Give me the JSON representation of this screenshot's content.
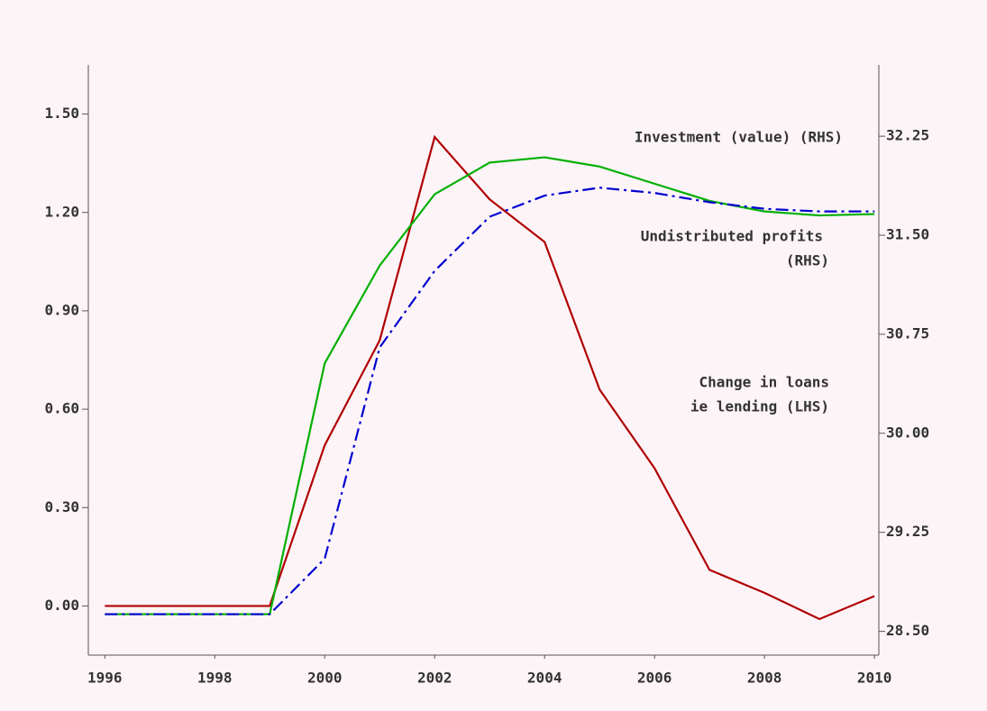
{
  "chart_data": {
    "type": "line",
    "x": [
      1996,
      1997,
      1998,
      1999,
      2000,
      2001,
      2002,
      2003,
      2004,
      2005,
      2006,
      2007,
      2008,
      2009,
      2010
    ],
    "series": [
      {
        "color": "#b00000",
        "axis": "y",
        "dash": false,
        "values": [
          0.0,
          0.0,
          0.0,
          0.0,
          0.49,
          0.81,
          1.43,
          1.24,
          1.11,
          0.66,
          0.42,
          0.11,
          0.04,
          -0.04,
          0.03
        ]
      },
      {
        "color": "#00b000",
        "axis": "y2",
        "dash": false,
        "values": [
          28.63,
          28.63,
          28.63,
          28.63,
          30.53,
          31.27,
          31.81,
          32.05,
          32.09,
          32.02,
          31.89,
          31.76,
          31.68,
          31.65,
          31.66
        ]
      },
      {
        "color": "#0000d0",
        "axis": "y2",
        "dash": true,
        "values": [
          28.63,
          28.63,
          28.63,
          28.63,
          29.05,
          30.65,
          31.23,
          31.64,
          31.8,
          31.86,
          31.82,
          31.75,
          31.7,
          31.68,
          31.68
        ]
      }
    ],
    "annotations": [
      "Investment (value) (RHS)",
      "Undistributed profits",
      "(RHS)",
      "Change in loans",
      "ie lending (LHS)"
    ],
    "xlim": [
      1995.7,
      2010.08
    ],
    "xticks": [
      1996,
      1998,
      2000,
      2002,
      2004,
      2006,
      2008,
      2010
    ],
    "ylim": [
      -0.15,
      1.65
    ],
    "yticks": [
      {
        "value": 0,
        "label": "0.00"
      },
      {
        "value": 0.3,
        "label": "0.30"
      },
      {
        "value": 0.6,
        "label": "0.60"
      },
      {
        "value": 0.9,
        "label": "0.90"
      },
      {
        "value": 1.2,
        "label": "1.20"
      },
      {
        "value": 1.5,
        "label": "1.50"
      }
    ],
    "y2lim": [
      28.32,
      32.79
    ],
    "y2ticks": [
      {
        "value": 28.5,
        "label": "28.50"
      },
      29.25,
      {
        "value": 30,
        "label": "30.00"
      },
      30.75,
      {
        "value": 31.5,
        "label": "31.50"
      },
      32.25
    ]
  }
}
